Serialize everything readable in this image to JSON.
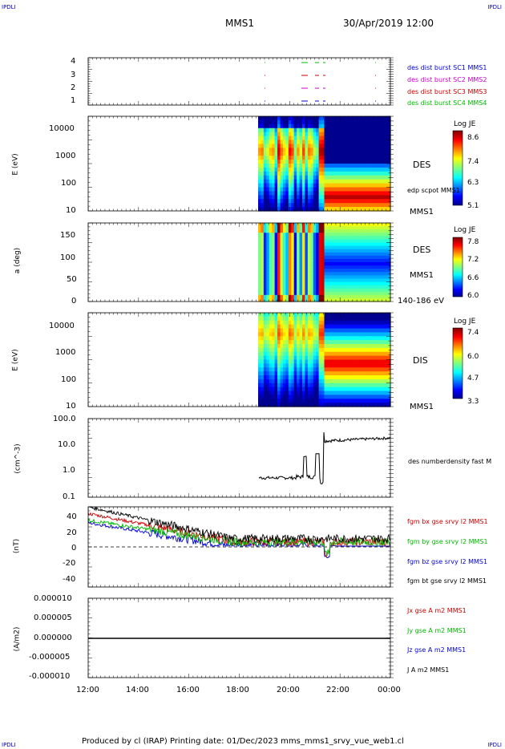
{
  "header": {
    "corner_tl": "IPDLI",
    "corner_tr": "IPDLI",
    "corner_bl": "IPDLI",
    "corner_br": "IPDLI",
    "mission": "MMS1",
    "datetime": "30/Apr/2019 12:00"
  },
  "footer": {
    "text": "Produced by cl (IRAP)   Printing date: 01/Dec/2023   mms_mms1_srvy_vue_web1.cl"
  },
  "colors": {
    "blue": "#0000cc",
    "magenta": "#cc00cc",
    "red": "#cc0000",
    "green": "#00bb00",
    "black": "#000000"
  },
  "time_axis": [
    "12:00",
    "14:00",
    "16:00",
    "18:00",
    "20:00",
    "22:00",
    "00:00"
  ],
  "chart_data": [
    {
      "type": "scatter",
      "panel": "burst",
      "yticks": [
        "1",
        "2",
        "3",
        "4"
      ],
      "legend": [
        {
          "name": "des dist burst SC1 MMS1",
          "color": "#0000cc"
        },
        {
          "name": "des dist burst SC2 MMS2",
          "color": "#cc00cc"
        },
        {
          "name": "des dist burst SC3 MMS3",
          "color": "#cc0000"
        },
        {
          "name": "des dist burst SC4 MMS4",
          "color": "#00bb00"
        }
      ]
    },
    {
      "type": "heatmap",
      "panel": "des-energy",
      "ylabel": "E (eV)",
      "yticks": [
        "10000",
        "1000",
        "100",
        "10"
      ],
      "species": "DES",
      "overlay": "edp scpot MMS1",
      "source": "MMS1",
      "colorbar": {
        "title": "Log JE",
        "ticks": [
          "8.6",
          "7.4",
          "6.3",
          "5.1"
        ]
      }
    },
    {
      "type": "heatmap",
      "panel": "des-pitch",
      "ylabel": "a (deg)",
      "yticks": [
        "150",
        "100",
        "50",
        "0"
      ],
      "species": "DES",
      "source": "MMS1",
      "energy_range": "140-186 eV",
      "colorbar": {
        "title": "Log JE",
        "ticks": [
          "7.8",
          "7.2",
          "6.6",
          "6.0"
        ]
      }
    },
    {
      "type": "heatmap",
      "panel": "dis-energy",
      "ylabel": "E (eV)",
      "yticks": [
        "10000",
        "1000",
        "100",
        "10"
      ],
      "species": "DIS",
      "source": "MMS1",
      "colorbar": {
        "title": "Log JE",
        "ticks": [
          "7.4",
          "6.0",
          "4.7",
          "3.3"
        ]
      }
    },
    {
      "type": "line",
      "panel": "density",
      "ylabel": "(cm^-3)",
      "yticks": [
        "100.0",
        "10.0",
        "1.0",
        "0.1"
      ],
      "series": [
        {
          "name": "des numberdensity fast M",
          "color": "#000000"
        }
      ]
    },
    {
      "type": "line",
      "panel": "magnetic",
      "ylabel": "(nT)",
      "yticks": [
        "40",
        "20",
        "0",
        "-20",
        "-40"
      ],
      "series": [
        {
          "name": "fgm bx gse srvy l2 MMS1",
          "color": "#cc0000"
        },
        {
          "name": "fgm by gse srvy l2 MMS1",
          "color": "#00bb00"
        },
        {
          "name": "fgm bz gse srvy l2 MMS1",
          "color": "#0000cc"
        },
        {
          "name": "fgm bt gse srvy l2 MMS1",
          "color": "#000000"
        }
      ]
    },
    {
      "type": "line",
      "panel": "current",
      "ylabel": "(A/m2)",
      "yticks": [
        "0.000010",
        "0.000005",
        "0.000000",
        "-0.000005",
        "-0.000010"
      ],
      "series": [
        {
          "name": "Jx gse A m2 MMS1",
          "color": "#cc0000"
        },
        {
          "name": "Jy gse A m2 MMS1",
          "color": "#00bb00"
        },
        {
          "name": "Jz gse A m2 MMS1",
          "color": "#0000cc"
        },
        {
          "name": "J A m2 MMS1",
          "color": "#000000"
        }
      ]
    }
  ]
}
